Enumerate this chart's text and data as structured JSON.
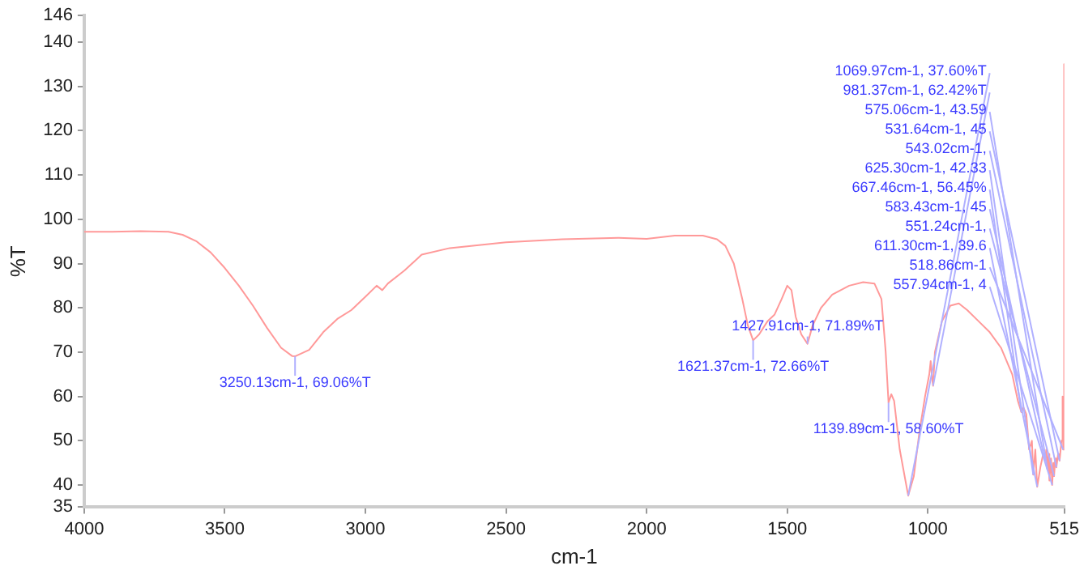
{
  "chart_data": {
    "type": "line",
    "xlabel": "cm-1",
    "ylabel": "%T",
    "xlim": [
      4000,
      515
    ],
    "xticks": [
      4000,
      3500,
      3000,
      2500,
      2000,
      1500,
      1000,
      515
    ],
    "ylim": [
      35,
      146
    ],
    "yticks": [
      35,
      40,
      50,
      60,
      70,
      80,
      90,
      100,
      110,
      120,
      130,
      140,
      146
    ],
    "grid": false,
    "legend": false,
    "marker": "none",
    "line_style": "solid",
    "series": [
      {
        "color": "#ff9999",
        "x": [
          4000,
          3900,
          3800,
          3700,
          3650,
          3600,
          3550,
          3500,
          3450,
          3400,
          3350,
          3300,
          3260,
          3250.13,
          3200,
          3150,
          3100,
          3050,
          3000,
          2960,
          2940,
          2920,
          2880,
          2860,
          2800,
          2700,
          2500,
          2300,
          2100,
          2000,
          1900,
          1800,
          1750,
          1720,
          1690,
          1660,
          1640,
          1621.37,
          1600,
          1570,
          1545,
          1520,
          1500,
          1485,
          1470,
          1450,
          1427.91,
          1410,
          1380,
          1340,
          1280,
          1230,
          1190,
          1165,
          1150,
          1139.89,
          1130,
          1120,
          1100,
          1069.97,
          1050,
          1030,
          1010,
          995,
          990,
          985,
          981.37,
          975,
          950,
          920,
          890,
          860,
          820,
          780,
          740,
          700,
          680,
          667.46,
          660,
          650,
          640,
          630,
          625.3,
          618,
          611.3,
          600,
          590,
          583.43,
          579,
          575.06,
          571,
          567.94,
          562,
          557.94,
          554,
          551.24,
          547,
          543.02,
          537,
          531.64,
          525,
          521,
          518.86,
          516,
          515
        ],
        "values": [
          97.2,
          97.2,
          97.3,
          97.2,
          96.5,
          95,
          92.5,
          89,
          85,
          80.5,
          75.5,
          71,
          69.1,
          69.06,
          70.5,
          74.5,
          77.5,
          79.5,
          82.5,
          85,
          84,
          85.5,
          87.5,
          88.5,
          92,
          93.5,
          94.8,
          95.5,
          95.8,
          95.6,
          96.3,
          96.3,
          95.5,
          94,
          90,
          82,
          76,
          72.66,
          74,
          77,
          78.5,
          82,
          85,
          84,
          78,
          74,
          71.89,
          76,
          80,
          83,
          85,
          85.8,
          85.5,
          82,
          70,
          58.6,
          60.5,
          59,
          48,
          37.6,
          42,
          52,
          60,
          65,
          68,
          64,
          62.42,
          70,
          77,
          80.5,
          81,
          79.5,
          77,
          74.5,
          71,
          65,
          59,
          56.45,
          57.5,
          56,
          48,
          50,
          42.33,
          48,
          39.6,
          44,
          47,
          45.5,
          48,
          43.59,
          47,
          41,
          46,
          40,
          45,
          42,
          46,
          44,
          47,
          45.5,
          50,
          60,
          48,
          135,
          100
        ]
      }
    ],
    "annotations": [
      {
        "text": "3250.13cm-1, 69.06%T",
        "x": 3250.13,
        "y": 69.06
      },
      {
        "text": "1621.37cm-1, 72.66%T",
        "x": 1621.37,
        "y": 72.66
      },
      {
        "text": "1427.91cm-1, 71.89%T",
        "x": 1427.91,
        "y": 71.89
      },
      {
        "text": "1139.89cm-1, 58.60%T",
        "x": 1139.89,
        "y": 58.6
      },
      {
        "text": "1069.97cm-1, 37.60%T",
        "x": 1069.97,
        "y": 37.6
      },
      {
        "text": "981.37cm-1, 62.42%T",
        "x": 981.37,
        "y": 62.42
      },
      {
        "text": "575.06cm-1, 43.59",
        "x": 575.06,
        "y": 43.59
      },
      {
        "text": "531.64cm-1, 45",
        "x": 531.64,
        "y": 45.5
      },
      {
        "text": "543.02cm-1,",
        "x": 543.02,
        "y": 44
      },
      {
        "text": "625.30cm-1, 42.33",
        "x": 625.3,
        "y": 42.33
      },
      {
        "text": "667.46cm-1, 56.45%",
        "x": 667.46,
        "y": 56.45
      },
      {
        "text": "583.43cm-1, 45",
        "x": 583.43,
        "y": 45.5
      },
      {
        "text": "551.24cm-1,",
        "x": 551.24,
        "y": 42
      },
      {
        "text": "611.30cm-1, 39.6",
        "x": 611.3,
        "y": 39.6
      },
      {
        "text": "518.86cm-1",
        "x": 518.86,
        "y": 48
      },
      {
        "text": "557.94cm-1, 4",
        "x": 557.94,
        "y": 40
      }
    ]
  }
}
